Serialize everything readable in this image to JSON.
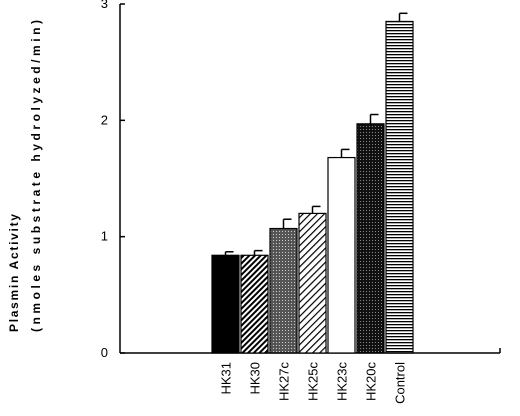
{
  "chart_data": {
    "type": "bar",
    "ylabel": [
      "Plasmin Activity",
      "(nmoles substrate hydrolyzed/min)"
    ],
    "categories": [
      "HK31",
      "HK30",
      "HK27c",
      "HK25c",
      "HK23c",
      "HK20c",
      "Control"
    ],
    "values": [
      0.84,
      0.84,
      1.07,
      1.2,
      1.68,
      1.97,
      2.85
    ],
    "errors": [
      0.03,
      0.04,
      0.08,
      0.06,
      0.07,
      0.08,
      0.07
    ],
    "patterns": [
      "solid",
      "dense-hatch",
      "stipple",
      "hatch",
      "open",
      "dark-stipple",
      "stripes"
    ],
    "color": "#000000",
    "ylim": [
      0,
      3
    ],
    "yticks": [
      0,
      1,
      2,
      3
    ]
  }
}
